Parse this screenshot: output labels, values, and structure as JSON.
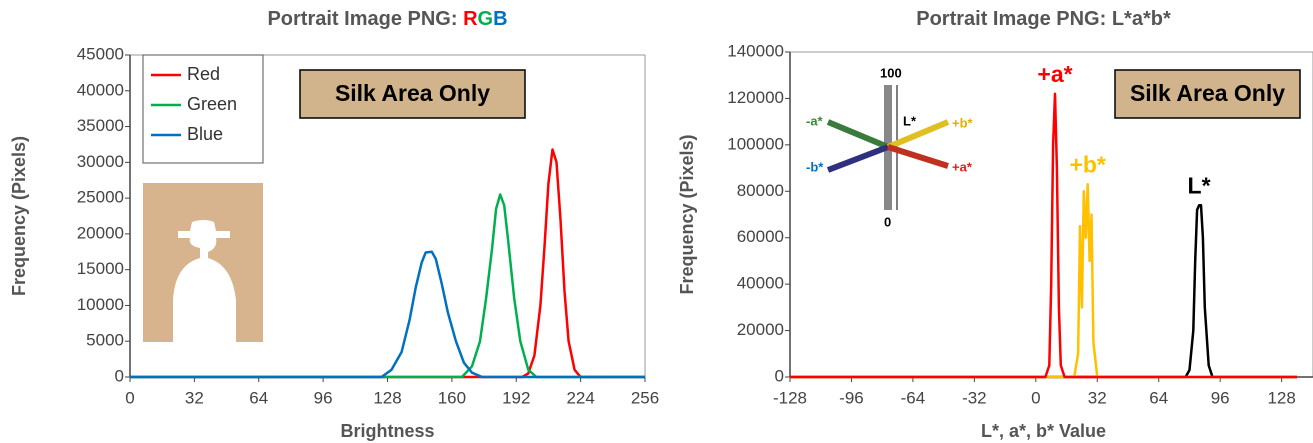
{
  "chart_data": [
    {
      "type": "line",
      "title_parts": [
        {
          "text": "Portrait Image PNG: ",
          "color": "#555555"
        },
        {
          "text": "R",
          "color": "#ff0000"
        },
        {
          "text": "G",
          "color": "#00b050"
        },
        {
          "text": "B",
          "color": "#0070c0"
        }
      ],
      "x_label": "Brightness",
      "y_label": "Frequency (Pixels)",
      "annotation": "Silk Area Only",
      "xlim": [
        0,
        256
      ],
      "xticks": [
        0,
        32,
        64,
        96,
        128,
        160,
        192,
        224,
        256
      ],
      "ylim": [
        0,
        45000
      ],
      "yticks": [
        0,
        5000,
        10000,
        15000,
        20000,
        25000,
        30000,
        35000,
        40000,
        45000
      ],
      "legend": "top-left",
      "series": [
        {
          "name": "Red",
          "color": "#ff0000",
          "x": [
            0,
            195,
            198,
            201,
            204,
            206,
            208,
            210,
            212,
            214,
            216,
            218,
            221,
            224,
            256
          ],
          "values": [
            0,
            0,
            500,
            3000,
            10000,
            18000,
            27000,
            31800,
            30000,
            22000,
            12000,
            5000,
            1000,
            0,
            0
          ]
        },
        {
          "name": "Green",
          "color": "#00b050",
          "x": [
            0,
            165,
            170,
            174,
            177,
            180,
            182,
            184,
            186,
            188,
            191,
            194,
            198,
            202,
            256
          ],
          "values": [
            0,
            0,
            1500,
            5000,
            11000,
            18000,
            23500,
            25500,
            24000,
            19000,
            11000,
            5000,
            1000,
            0,
            0
          ]
        },
        {
          "name": "Blue",
          "color": "#0070c0",
          "x": [
            0,
            125,
            130,
            135,
            139,
            142,
            145,
            147,
            150,
            152,
            155,
            158,
            162,
            166,
            170,
            175,
            256
          ],
          "values": [
            0,
            0,
            1000,
            3500,
            8000,
            12500,
            16000,
            17400,
            17500,
            16500,
            13000,
            9000,
            5000,
            2000,
            600,
            0,
            0
          ]
        }
      ]
    },
    {
      "type": "line",
      "title_parts": [
        {
          "text": "Portrait Image PNG: L*a*b*",
          "color": "#555555"
        }
      ],
      "x_label": "L*, a*, b* Value",
      "y_label": "Frequency (Pixels)",
      "annotation": "Silk Area Only",
      "inset": {
        "top": "100",
        "bottom": "0",
        "axis": "L*",
        "labels": [
          "-a*",
          "+b*",
          "-b*",
          "+a*"
        ]
      },
      "xlim": [
        -128,
        136
      ],
      "xticks": [
        -128,
        -96,
        -64,
        -32,
        0,
        32,
        64,
        96,
        128
      ],
      "ylim": [
        0,
        140000
      ],
      "yticks": [
        0,
        20000,
        40000,
        60000,
        80000,
        100000,
        120000,
        140000
      ],
      "legend": "none",
      "series": [
        {
          "name": "L*",
          "color": "#000000",
          "x": [
            -128,
            78,
            80,
            82,
            83,
            84,
            85,
            86,
            87,
            88,
            90,
            92,
            136
          ],
          "values": [
            0,
            0,
            3000,
            20000,
            50000,
            72000,
            74000,
            74000,
            60000,
            30000,
            5000,
            0,
            0
          ]
        },
        {
          "name": "+b*",
          "color": "#ffc000",
          "x": [
            -128,
            20,
            22,
            23,
            24,
            25,
            26,
            27,
            28,
            29,
            30,
            32,
            136
          ],
          "values": [
            0,
            0,
            10000,
            65000,
            30000,
            80000,
            60000,
            83000,
            50000,
            70000,
            15000,
            0,
            0
          ]
        },
        {
          "name": "+a*",
          "color": "#ff0000",
          "x": [
            -128,
            5,
            7,
            8,
            9,
            10,
            11,
            12,
            13,
            15,
            136
          ],
          "values": [
            0,
            0,
            5000,
            40000,
            100000,
            122000,
            90000,
            30000,
            5000,
            0,
            0
          ]
        }
      ]
    }
  ]
}
